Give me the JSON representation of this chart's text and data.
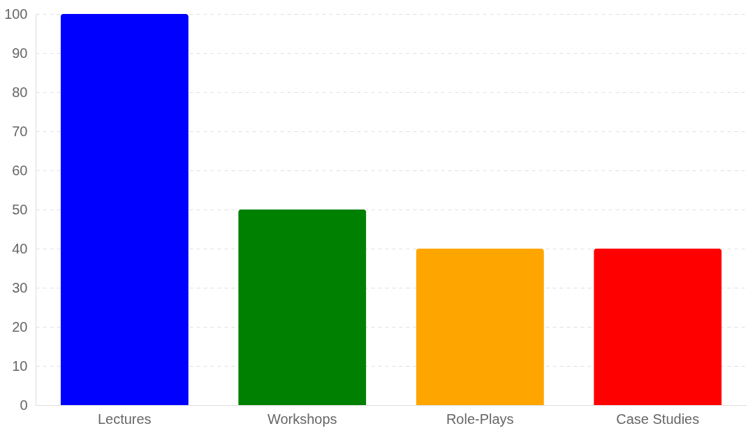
{
  "chart_data": {
    "type": "bar",
    "categories": [
      "Lectures",
      "Workshops",
      "Role-Plays",
      "Case Studies"
    ],
    "values": [
      100,
      50,
      40,
      40
    ],
    "colors": [
      "#0000ff",
      "#008000",
      "#ffa500",
      "#ff0000"
    ],
    "ylim": [
      0,
      100
    ],
    "yticks": [
      0,
      10,
      20,
      30,
      40,
      50,
      60,
      70,
      80,
      90,
      100
    ],
    "grid": "y"
  }
}
